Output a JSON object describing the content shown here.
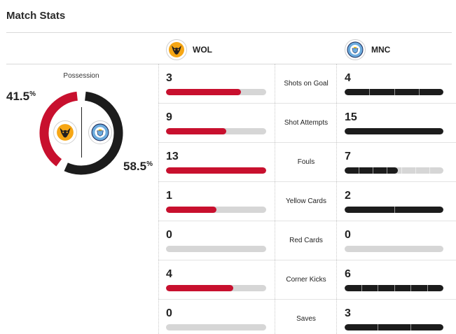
{
  "title": "Match Stats",
  "colors": {
    "home": "#c8102e",
    "away": "#1c1c1c",
    "track": "#d6d6d6"
  },
  "teams": {
    "home": {
      "abbr": "WOL",
      "icon": "wolves-crest-icon"
    },
    "away": {
      "abbr": "MNC",
      "icon": "man-city-crest-icon"
    }
  },
  "possession": {
    "label": "Possession",
    "home": {
      "value": "41.5",
      "suffix": "%",
      "fraction": 0.415
    },
    "away": {
      "value": "58.5",
      "suffix": "%",
      "fraction": 0.585
    }
  },
  "stats": [
    {
      "label": "Shots on Goal",
      "home": "3",
      "away": "4",
      "home_frac": 0.75,
      "away_frac": 1.0
    },
    {
      "label": "Shot Attempts",
      "home": "9",
      "away": "15",
      "home_frac": 0.6,
      "away_frac": 1.0
    },
    {
      "label": "Fouls",
      "home": "13",
      "away": "7",
      "home_frac": 1.0,
      "away_frac": 0.54
    },
    {
      "label": "Yellow Cards",
      "home": "1",
      "away": "2",
      "home_frac": 0.5,
      "away_frac": 1.0
    },
    {
      "label": "Red Cards",
      "home": "0",
      "away": "0",
      "home_frac": 0.0,
      "away_frac": 0.0
    },
    {
      "label": "Corner Kicks",
      "home": "4",
      "away": "6",
      "home_frac": 0.67,
      "away_frac": 1.0
    },
    {
      "label": "Saves",
      "home": "0",
      "away": "3",
      "home_frac": 0.0,
      "away_frac": 1.0
    }
  ]
}
